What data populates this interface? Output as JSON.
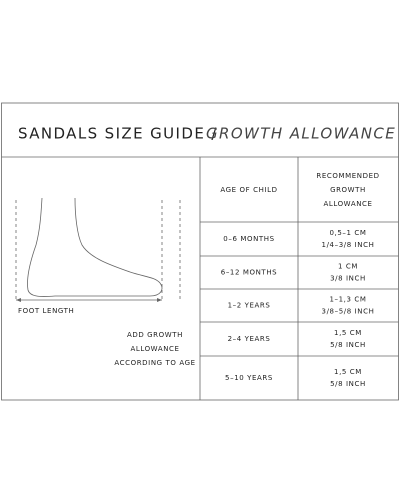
{
  "header": {
    "title": "SANDALS SIZE GUIDE /",
    "subtitle": "GROWTH ALLOWANCE"
  },
  "diagram": {
    "foot_length_label": "FOOT LENGTH",
    "growth_label": [
      "ADD GROWTH",
      "ALLOWANCE",
      "ACCORDING TO AGE"
    ]
  },
  "table": {
    "columns": [
      [
        "AGE OF CHILD"
      ],
      [
        "RECOMMENDED",
        "GROWTH",
        "ALLOWANCE"
      ]
    ],
    "rows": [
      [
        "0–6 MONTHS",
        "0,5–1 CM",
        "1/4–3/8 INCH"
      ],
      [
        "6–12 MONTHS",
        "1 CM",
        "3/8 INCH"
      ],
      [
        "1–2 YEARS",
        "1–1,3 CM",
        "3/8–5/8 INCH"
      ],
      [
        "2–4 YEARS",
        "1,5 CM",
        "5/8 INCH"
      ],
      [
        "5–10 YEARS",
        "1,5 CM",
        "5/8 INCH"
      ]
    ]
  }
}
